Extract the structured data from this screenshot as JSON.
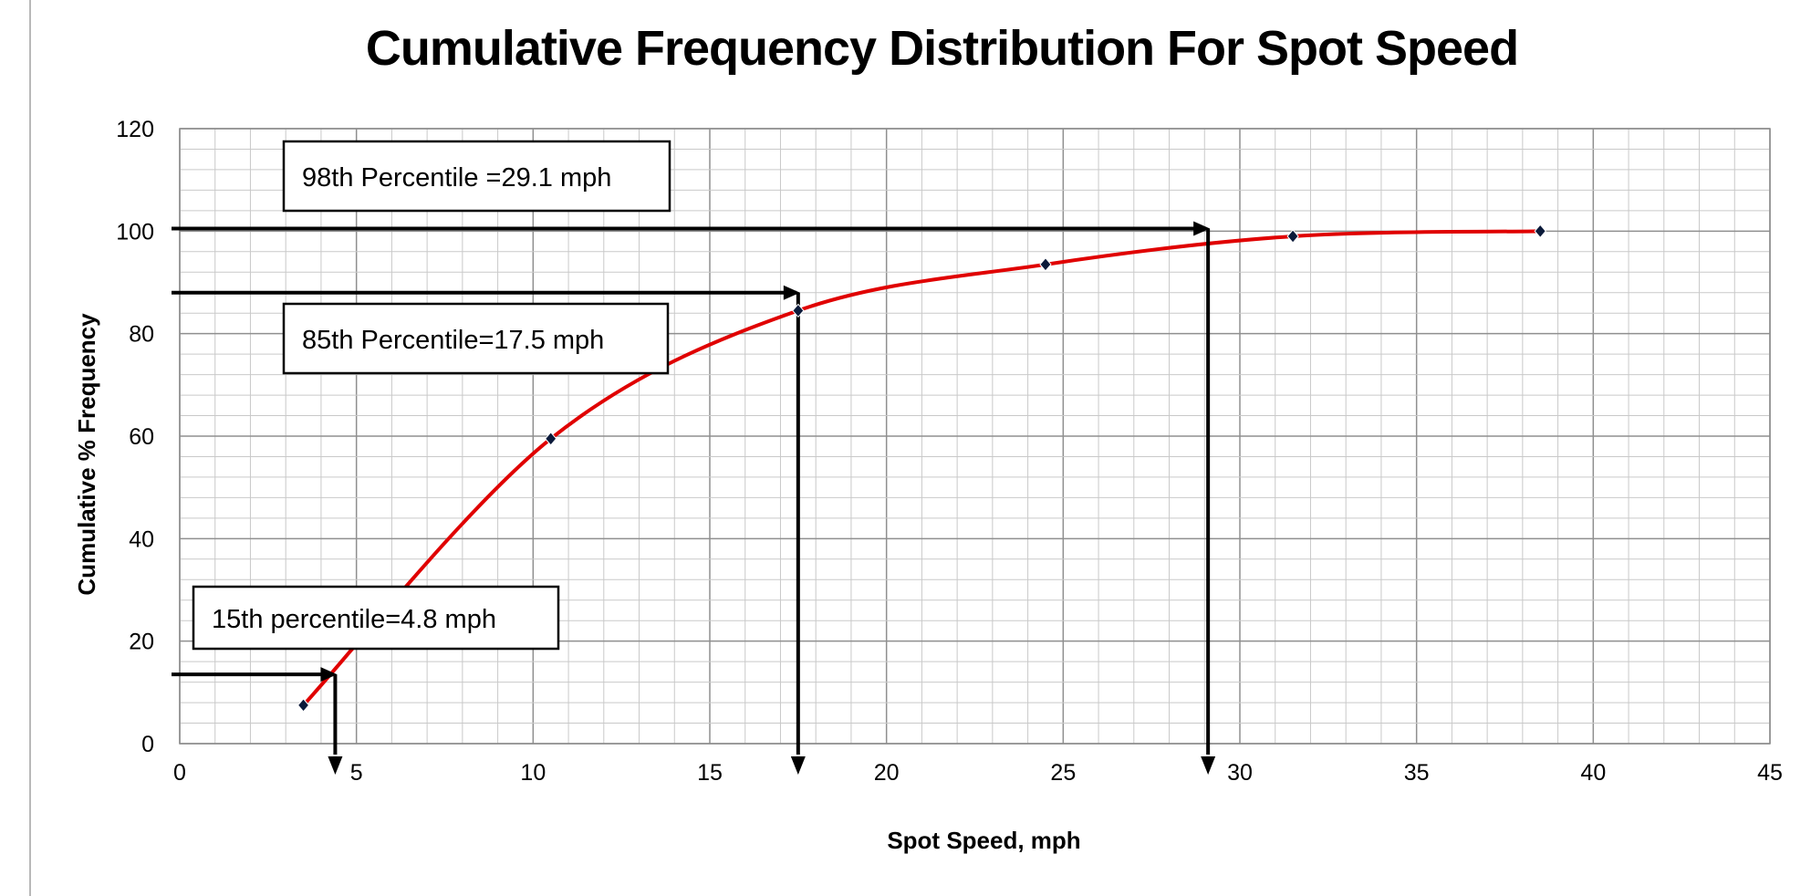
{
  "chart_data": {
    "type": "line",
    "title": "Cumulative Frequency Distribution For Spot Speed",
    "xlabel": "Spot Speed, mph",
    "ylabel": "Cumulative % Frequency",
    "xlim": [
      0,
      45
    ],
    "ylim": [
      0,
      120
    ],
    "x_ticks": [
      "0",
      "5",
      "10",
      "15",
      "20",
      "25",
      "30",
      "35",
      "40",
      "45"
    ],
    "y_ticks": [
      "0",
      "20",
      "40",
      "60",
      "80",
      "100",
      "120"
    ],
    "grid": true,
    "legend": "none",
    "series": [
      {
        "color": "#e00000",
        "marker_color": "#0b1a3a",
        "x": [
          3.5,
          10.5,
          17.5,
          24.5,
          31.5,
          38.5
        ],
        "y": [
          7.5,
          59.5,
          84.5,
          93.5,
          99,
          100
        ]
      }
    ],
    "annotations": [
      {
        "label": "98th Percentile =29.1 mph",
        "speed": 29.1,
        "percent": 100.5
      },
      {
        "label": "85th Percentile=17.5 mph",
        "speed": 17.5,
        "percent": 88
      },
      {
        "label": "15th percentile=4.8 mph",
        "speed": 4.4,
        "percent": 13.5
      }
    ]
  }
}
